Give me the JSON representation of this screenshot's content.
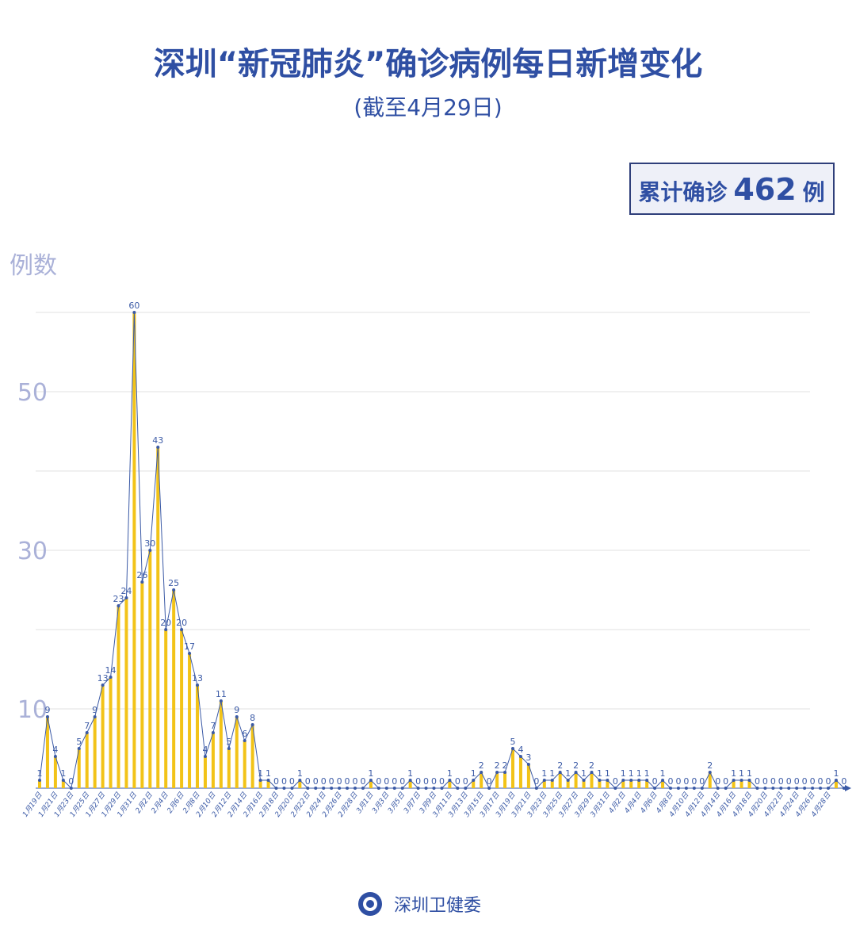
{
  "chart_data": {
    "type": "line-bar",
    "title": "深圳“新冠肺炎”确诊病例每日新增变化",
    "subtitle": "(截至4月29日)",
    "y_label": "例数",
    "summary": {
      "prefix": "累计确诊",
      "value": 462,
      "unit": "例"
    },
    "categories": [
      "1月19日",
      null,
      "1月21日",
      null,
      "1月23日",
      null,
      "1月25日",
      null,
      "1月27日",
      null,
      "1月29日",
      null,
      "1月31日",
      null,
      "2月2日",
      null,
      "2月4日",
      null,
      "2月6日",
      null,
      "2月8日",
      null,
      "2月10日",
      null,
      "2月12日",
      null,
      "2月14日",
      null,
      "2月16日",
      null,
      "2月18日",
      null,
      "2月20日",
      null,
      "2月22日",
      null,
      "2月24日",
      null,
      "2月26日",
      null,
      "2月28日",
      null,
      "3月1日",
      null,
      "3月3日",
      null,
      "3月5日",
      null,
      "3月7日",
      null,
      "3月9日",
      null,
      "3月11日",
      null,
      "3月13日",
      null,
      "3月15日",
      null,
      "3月17日",
      null,
      "3月19日",
      null,
      "3月21日",
      null,
      "3月23日",
      null,
      "3月25日",
      null,
      "3月27日",
      null,
      "3月29日",
      null,
      "3月31日",
      null,
      "4月2日",
      null,
      "4月4日",
      null,
      "4月6日",
      null,
      "4月8日",
      null,
      "4月10日",
      null,
      "4月12日",
      null,
      "4月14日",
      null,
      "4月16日",
      null,
      "4月18日",
      null,
      "4月20日",
      null,
      "4月22日",
      null,
      "4月24日",
      null,
      "4月26日",
      null,
      "4月28日",
      null,
      null
    ],
    "values": [
      1,
      9,
      4,
      1,
      0,
      5,
      7,
      9,
      13,
      14,
      23,
      24,
      60,
      26,
      30,
      43,
      20,
      25,
      20,
      17,
      13,
      4,
      7,
      11,
      5,
      9,
      6,
      8,
      1,
      1,
      0,
      0,
      0,
      1,
      0,
      0,
      0,
      0,
      0,
      0,
      0,
      0,
      1,
      0,
      0,
      0,
      0,
      1,
      0,
      0,
      0,
      0,
      1,
      0,
      0,
      1,
      2,
      0,
      2,
      2,
      5,
      4,
      3,
      0,
      1,
      1,
      2,
      1,
      2,
      1,
      2,
      1,
      1,
      0,
      1,
      1,
      1,
      1,
      0,
      1,
      0,
      0,
      0,
      0,
      0,
      2,
      0,
      0,
      1,
      1,
      1,
      0,
      0,
      0,
      0,
      0,
      0,
      0,
      0,
      0,
      0,
      1,
      0
    ],
    "bar_color": "#f2c318",
    "line_color": "#3b5aa6",
    "ylim": [
      0,
      62
    ],
    "yticks": [
      10,
      30,
      50
    ],
    "gridlines": [
      10,
      20,
      30,
      40,
      50,
      60
    ],
    "grid": true
  },
  "footer": {
    "text": "深圳卫健委"
  }
}
